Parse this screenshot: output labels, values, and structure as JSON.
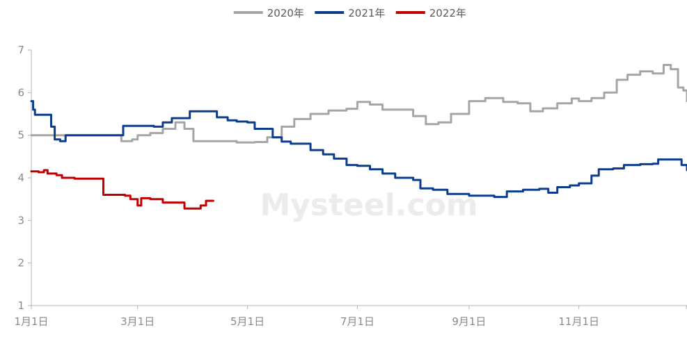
{
  "chart_data": {
    "type": "line",
    "title": "",
    "xlabel": "",
    "ylabel": "",
    "ylim": [
      1,
      7
    ],
    "y_ticks": [
      1,
      2,
      3,
      4,
      5,
      6,
      7
    ],
    "x_ticks": [
      {
        "date": "01-01",
        "label": "1月1日"
      },
      {
        "date": "03-01",
        "label": "3月1日"
      },
      {
        "date": "05-01",
        "label": "5月1日"
      },
      {
        "date": "07-01",
        "label": "7月1日"
      },
      {
        "date": "09-01",
        "label": "9月1日"
      },
      {
        "date": "11-01",
        "label": "11月1日"
      }
    ],
    "x_range": [
      "01-01",
      "12-31"
    ],
    "grid": false,
    "legend_position": "top",
    "watermark": "Mysteel.com",
    "series": [
      {
        "name": "2020年",
        "color": "#a5a5a5",
        "points": [
          [
            "01-01",
            5.0
          ],
          [
            "01-10",
            5.0
          ],
          [
            "01-20",
            5.0
          ],
          [
            "01-30",
            5.0
          ],
          [
            "02-10",
            5.0
          ],
          [
            "02-20",
            4.86
          ],
          [
            "02-26",
            4.9
          ],
          [
            "03-01",
            5.0
          ],
          [
            "03-08",
            5.05
          ],
          [
            "03-15",
            5.15
          ],
          [
            "03-22",
            5.3
          ],
          [
            "03-27",
            5.15
          ],
          [
            "04-01",
            4.86
          ],
          [
            "04-15",
            4.86
          ],
          [
            "04-25",
            4.83
          ],
          [
            "05-05",
            4.84
          ],
          [
            "05-12",
            4.95
          ],
          [
            "05-20",
            5.2
          ],
          [
            "05-27",
            5.38
          ],
          [
            "06-05",
            5.5
          ],
          [
            "06-15",
            5.58
          ],
          [
            "06-25",
            5.62
          ],
          [
            "07-01",
            5.78
          ],
          [
            "07-08",
            5.72
          ],
          [
            "07-15",
            5.6
          ],
          [
            "07-25",
            5.6
          ],
          [
            "08-01",
            5.45
          ],
          [
            "08-08",
            5.26
          ],
          [
            "08-15",
            5.3
          ],
          [
            "08-22",
            5.5
          ],
          [
            "09-01",
            5.8
          ],
          [
            "09-10",
            5.87
          ],
          [
            "09-20",
            5.78
          ],
          [
            "09-28",
            5.75
          ],
          [
            "10-05",
            5.56
          ],
          [
            "10-12",
            5.63
          ],
          [
            "10-20",
            5.75
          ],
          [
            "10-28",
            5.86
          ],
          [
            "11-01",
            5.8
          ],
          [
            "11-08",
            5.87
          ],
          [
            "11-15",
            6.0
          ],
          [
            "11-22",
            6.3
          ],
          [
            "11-28",
            6.42
          ],
          [
            "12-05",
            6.5
          ],
          [
            "12-12",
            6.45
          ],
          [
            "12-18",
            6.65
          ],
          [
            "12-22",
            6.55
          ],
          [
            "12-26",
            6.12
          ],
          [
            "12-29",
            6.05
          ],
          [
            "12-31",
            5.8
          ]
        ]
      },
      {
        "name": "2021年",
        "color": "#0c3c8c",
        "points": [
          [
            "01-01",
            5.8
          ],
          [
            "01-02",
            5.6
          ],
          [
            "01-03",
            5.48
          ],
          [
            "01-10",
            5.48
          ],
          [
            "01-12",
            5.2
          ],
          [
            "01-14",
            4.9
          ],
          [
            "01-17",
            4.86
          ],
          [
            "01-20",
            5.0
          ],
          [
            "01-30",
            5.0
          ],
          [
            "02-15",
            5.0
          ],
          [
            "02-20",
            5.0
          ],
          [
            "02-21",
            5.22
          ],
          [
            "03-01",
            5.22
          ],
          [
            "03-10",
            5.2
          ],
          [
            "03-15",
            5.3
          ],
          [
            "03-20",
            5.4
          ],
          [
            "03-27",
            5.4
          ],
          [
            "03-30",
            5.56
          ],
          [
            "04-10",
            5.56
          ],
          [
            "04-14",
            5.42
          ],
          [
            "04-20",
            5.35
          ],
          [
            "04-25",
            5.32
          ],
          [
            "05-01",
            5.3
          ],
          [
            "05-05",
            5.15
          ],
          [
            "05-12",
            5.15
          ],
          [
            "05-15",
            4.95
          ],
          [
            "05-20",
            4.85
          ],
          [
            "05-25",
            4.8
          ],
          [
            "06-01",
            4.8
          ],
          [
            "06-05",
            4.65
          ],
          [
            "06-12",
            4.55
          ],
          [
            "06-18",
            4.45
          ],
          [
            "06-25",
            4.3
          ],
          [
            "07-01",
            4.28
          ],
          [
            "07-08",
            4.2
          ],
          [
            "07-15",
            4.1
          ],
          [
            "07-22",
            4.0
          ],
          [
            "08-01",
            3.95
          ],
          [
            "08-05",
            3.75
          ],
          [
            "08-12",
            3.72
          ],
          [
            "08-20",
            3.62
          ],
          [
            "09-01",
            3.58
          ],
          [
            "09-15",
            3.55
          ],
          [
            "09-22",
            3.68
          ],
          [
            "10-01",
            3.72
          ],
          [
            "10-10",
            3.74
          ],
          [
            "10-15",
            3.65
          ],
          [
            "10-20",
            3.78
          ],
          [
            "10-27",
            3.82
          ],
          [
            "11-01",
            3.87
          ],
          [
            "11-08",
            4.05
          ],
          [
            "11-12",
            4.2
          ],
          [
            "11-20",
            4.22
          ],
          [
            "11-26",
            4.3
          ],
          [
            "12-05",
            4.32
          ],
          [
            "12-12",
            4.33
          ],
          [
            "12-15",
            4.43
          ],
          [
            "12-20",
            4.43
          ],
          [
            "12-25",
            4.43
          ],
          [
            "12-28",
            4.3
          ],
          [
            "12-31",
            4.18
          ]
        ]
      },
      {
        "name": "2022年",
        "color": "#c00000",
        "points": [
          [
            "01-01",
            4.15
          ],
          [
            "01-05",
            4.13
          ],
          [
            "01-08",
            4.18
          ],
          [
            "01-10",
            4.1
          ],
          [
            "01-15",
            4.06
          ],
          [
            "01-18",
            4.0
          ],
          [
            "01-25",
            3.98
          ],
          [
            "02-01",
            3.98
          ],
          [
            "02-06",
            3.98
          ],
          [
            "02-09",
            3.98
          ],
          [
            "02-10",
            3.6
          ],
          [
            "02-15",
            3.6
          ],
          [
            "02-22",
            3.58
          ],
          [
            "02-25",
            3.5
          ],
          [
            "02-28",
            3.5
          ],
          [
            "03-01",
            3.35
          ],
          [
            "03-03",
            3.52
          ],
          [
            "03-08",
            3.5
          ],
          [
            "03-15",
            3.42
          ],
          [
            "03-25",
            3.42
          ],
          [
            "03-27",
            3.28
          ],
          [
            "04-03",
            3.28
          ],
          [
            "04-05",
            3.35
          ],
          [
            "04-08",
            3.46
          ],
          [
            "04-12",
            3.46
          ]
        ]
      }
    ]
  }
}
